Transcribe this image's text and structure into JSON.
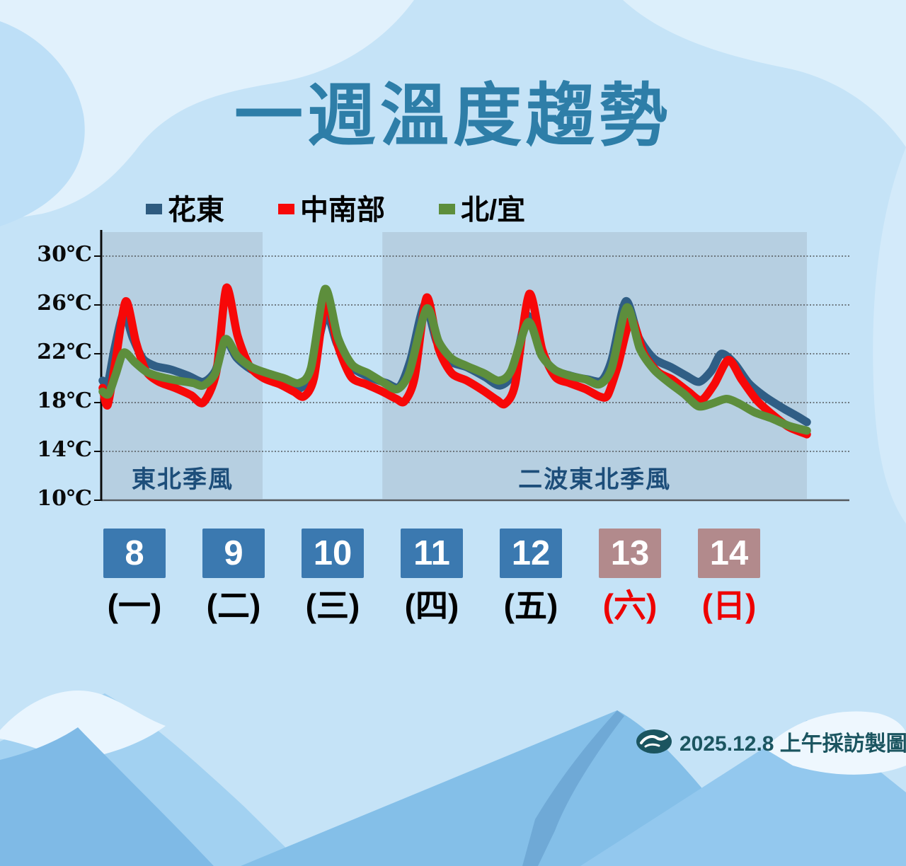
{
  "title": "一週溫度趨勢",
  "legend": [
    {
      "label": "花東",
      "color": "#2e5b80"
    },
    {
      "label": "中南部",
      "color": "#f70808"
    },
    {
      "label": "北/宜",
      "color": "#5d8e3c"
    }
  ],
  "chart_data": {
    "type": "line",
    "title": "一週溫度趨勢",
    "unit": "℃",
    "ylim": [
      10,
      30
    ],
    "y_ticks": [
      30,
      26,
      22,
      18,
      14,
      10
    ],
    "grid": "horizontal-dotted",
    "legend_position": "top",
    "regions": [
      {
        "label": "東北季風",
        "day_start": 0.0,
        "day_end": 1.59
      },
      {
        "label": "二波東北季風",
        "day_start": 2.78,
        "day_end": 7.0
      }
    ],
    "series": [
      {
        "name": "花東",
        "color": "#305e85",
        "points": [
          [
            0.0,
            19.8
          ],
          [
            0.05,
            19.5
          ],
          [
            0.12,
            22.5
          ],
          [
            0.21,
            25.3
          ],
          [
            0.3,
            23.3
          ],
          [
            0.4,
            21.6
          ],
          [
            0.52,
            21.0
          ],
          [
            0.68,
            20.7
          ],
          [
            0.85,
            20.2
          ],
          [
            1.0,
            19.7
          ],
          [
            1.12,
            20.6
          ],
          [
            1.22,
            23.1
          ],
          [
            1.33,
            21.7
          ],
          [
            1.48,
            20.7
          ],
          [
            1.65,
            20.3
          ],
          [
            1.82,
            19.9
          ],
          [
            1.97,
            19.2
          ],
          [
            2.08,
            20.8
          ],
          [
            2.22,
            25.2
          ],
          [
            2.33,
            22.8
          ],
          [
            2.48,
            20.9
          ],
          [
            2.65,
            20.1
          ],
          [
            2.82,
            19.6
          ],
          [
            2.95,
            19.3
          ],
          [
            3.06,
            21.5
          ],
          [
            3.2,
            26.0
          ],
          [
            3.32,
            23.0
          ],
          [
            3.45,
            21.4
          ],
          [
            3.62,
            20.9
          ],
          [
            3.8,
            20.1
          ],
          [
            3.95,
            19.4
          ],
          [
            4.08,
            20.5
          ],
          [
            4.22,
            25.1
          ],
          [
            4.35,
            22.2
          ],
          [
            4.48,
            20.7
          ],
          [
            4.65,
            20.2
          ],
          [
            4.82,
            19.9
          ],
          [
            4.96,
            19.8
          ],
          [
            5.06,
            21.5
          ],
          [
            5.2,
            26.3
          ],
          [
            5.33,
            23.3
          ],
          [
            5.48,
            21.6
          ],
          [
            5.65,
            20.9
          ],
          [
            5.8,
            20.2
          ],
          [
            5.93,
            19.7
          ],
          [
            6.05,
            20.6
          ],
          [
            6.15,
            22.0
          ],
          [
            6.28,
            21.2
          ],
          [
            6.42,
            19.6
          ],
          [
            6.58,
            18.5
          ],
          [
            6.75,
            17.6
          ],
          [
            6.9,
            16.9
          ],
          [
            7.0,
            16.4
          ]
        ]
      },
      {
        "name": "中南部",
        "color": "#f70808",
        "points": [
          [
            0.0,
            19.2
          ],
          [
            0.05,
            17.8
          ],
          [
            0.13,
            21.5
          ],
          [
            0.23,
            26.3
          ],
          [
            0.33,
            23.0
          ],
          [
            0.43,
            20.6
          ],
          [
            0.56,
            19.7
          ],
          [
            0.72,
            19.2
          ],
          [
            0.88,
            18.6
          ],
          [
            1.0,
            18.0
          ],
          [
            1.13,
            20.5
          ],
          [
            1.23,
            27.4
          ],
          [
            1.34,
            23.5
          ],
          [
            1.46,
            21.0
          ],
          [
            1.6,
            20.0
          ],
          [
            1.76,
            19.5
          ],
          [
            1.9,
            18.9
          ],
          [
            2.0,
            18.5
          ],
          [
            2.1,
            20.0
          ],
          [
            2.22,
            26.4
          ],
          [
            2.34,
            22.6
          ],
          [
            2.47,
            20.1
          ],
          [
            2.62,
            19.5
          ],
          [
            2.78,
            18.9
          ],
          [
            2.92,
            18.3
          ],
          [
            3.0,
            18.1
          ],
          [
            3.1,
            20.0
          ],
          [
            3.22,
            26.6
          ],
          [
            3.34,
            22.4
          ],
          [
            3.47,
            20.4
          ],
          [
            3.62,
            19.8
          ],
          [
            3.78,
            19.0
          ],
          [
            3.92,
            18.2
          ],
          [
            4.0,
            17.9
          ],
          [
            4.1,
            19.5
          ],
          [
            4.24,
            26.9
          ],
          [
            4.37,
            22.3
          ],
          [
            4.5,
            20.1
          ],
          [
            4.64,
            19.6
          ],
          [
            4.8,
            19.1
          ],
          [
            4.94,
            18.5
          ],
          [
            5.02,
            18.6
          ],
          [
            5.12,
            21.0
          ],
          [
            5.25,
            24.8
          ],
          [
            5.38,
            22.0
          ],
          [
            5.52,
            20.5
          ],
          [
            5.66,
            19.9
          ],
          [
            5.82,
            18.9
          ],
          [
            5.95,
            18.2
          ],
          [
            6.08,
            19.5
          ],
          [
            6.22,
            21.5
          ],
          [
            6.35,
            19.9
          ],
          [
            6.5,
            18.2
          ],
          [
            6.66,
            17.0
          ],
          [
            6.82,
            16.0
          ],
          [
            7.0,
            15.4
          ]
        ]
      },
      {
        "name": "北/宜",
        "color": "#5d8e3c",
        "points": [
          [
            0.0,
            18.9
          ],
          [
            0.06,
            18.7
          ],
          [
            0.13,
            20.3
          ],
          [
            0.21,
            22.1
          ],
          [
            0.32,
            21.3
          ],
          [
            0.44,
            20.5
          ],
          [
            0.58,
            20.1
          ],
          [
            0.75,
            19.8
          ],
          [
            0.9,
            19.6
          ],
          [
            1.0,
            19.4
          ],
          [
            1.12,
            20.4
          ],
          [
            1.22,
            23.2
          ],
          [
            1.34,
            21.8
          ],
          [
            1.48,
            20.9
          ],
          [
            1.64,
            20.4
          ],
          [
            1.8,
            20.0
          ],
          [
            1.95,
            19.6
          ],
          [
            2.07,
            20.8
          ],
          [
            2.21,
            27.3
          ],
          [
            2.34,
            23.3
          ],
          [
            2.48,
            21.1
          ],
          [
            2.64,
            20.4
          ],
          [
            2.8,
            19.6
          ],
          [
            2.93,
            19.1
          ],
          [
            3.05,
            20.5
          ],
          [
            3.22,
            25.7
          ],
          [
            3.34,
            23.0
          ],
          [
            3.47,
            21.6
          ],
          [
            3.62,
            21.0
          ],
          [
            3.79,
            20.4
          ],
          [
            3.94,
            19.8
          ],
          [
            4.06,
            20.6
          ],
          [
            4.23,
            24.6
          ],
          [
            4.36,
            21.9
          ],
          [
            4.49,
            20.7
          ],
          [
            4.64,
            20.2
          ],
          [
            4.8,
            19.9
          ],
          [
            4.94,
            19.5
          ],
          [
            5.06,
            20.8
          ],
          [
            5.21,
            25.8
          ],
          [
            5.34,
            22.4
          ],
          [
            5.48,
            20.7
          ],
          [
            5.62,
            19.7
          ],
          [
            5.78,
            18.7
          ],
          [
            5.92,
            17.7
          ],
          [
            6.05,
            17.9
          ],
          [
            6.2,
            18.3
          ],
          [
            6.33,
            17.9
          ],
          [
            6.48,
            17.2
          ],
          [
            6.65,
            16.7
          ],
          [
            6.82,
            16.1
          ],
          [
            7.0,
            15.7
          ]
        ]
      }
    ],
    "x_days": [
      {
        "num": "8",
        "dow": "(一)",
        "box_color": "#3b79b0",
        "dow_color": "#000000"
      },
      {
        "num": "9",
        "dow": "(二)",
        "box_color": "#3b79b0",
        "dow_color": "#000000"
      },
      {
        "num": "10",
        "dow": "(三)",
        "box_color": "#3b79b0",
        "dow_color": "#000000"
      },
      {
        "num": "11",
        "dow": "(四)",
        "box_color": "#3b79b0",
        "dow_color": "#000000"
      },
      {
        "num": "12",
        "dow": "(五)",
        "box_color": "#3b79b0",
        "dow_color": "#000000"
      },
      {
        "num": "13",
        "dow": "(六)",
        "box_color": "#b28a8c",
        "dow_color": "#ee0000"
      },
      {
        "num": "14",
        "dow": "(日)",
        "box_color": "#b28a8c",
        "dow_color": "#ee0000"
      }
    ],
    "region_fill": "#b6cfe1"
  },
  "footer": {
    "credit": "2025.12.8 上午採訪製圖"
  }
}
